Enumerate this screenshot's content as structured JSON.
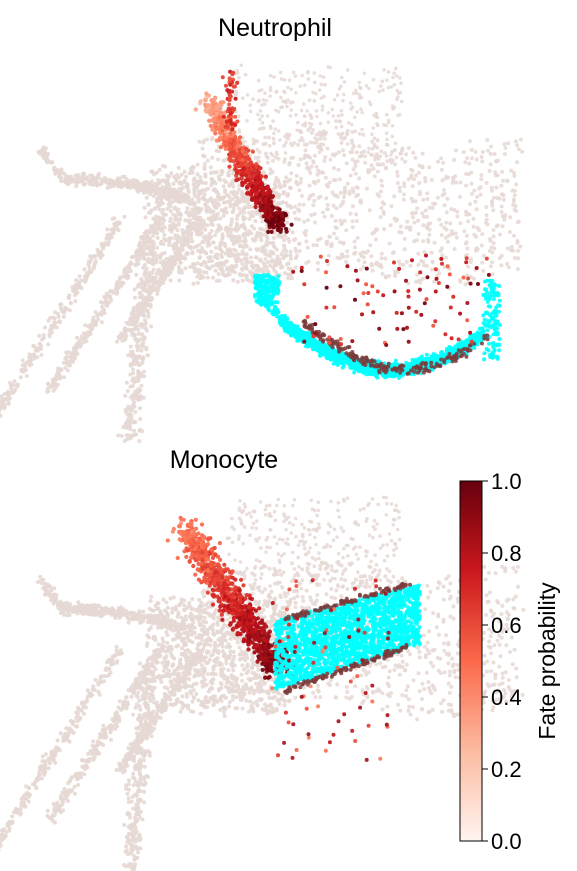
{
  "chart_data": [
    {
      "type": "scatter",
      "title": "Neutrophil",
      "xlabel": "",
      "ylabel": "",
      "axes_visible": false,
      "value_scale": "fate probability 0-1",
      "terminal_state_color": "#00ffff",
      "background_point_color": "#e6d8d4",
      "point_clusters": [
        {
          "region": "left arm and lower branches",
          "fate_probability": 0.05
        },
        {
          "region": "central funnel",
          "fate_probability": 0.75
        },
        {
          "region": "upper right plateau",
          "fate_probability": 0.12
        },
        {
          "region": "lower right basin (terminal)",
          "fate_probability": 1.0
        }
      ]
    },
    {
      "type": "scatter",
      "title": "Monocyte",
      "xlabel": "",
      "ylabel": "",
      "axes_visible": false,
      "value_scale": "fate probability 0-1",
      "terminal_state_color": "#00ffff",
      "background_point_color": "#e6d8d4",
      "point_clusters": [
        {
          "region": "left arm and lower branches",
          "fate_probability": 0.04
        },
        {
          "region": "central funnel",
          "fate_probability": 0.85
        },
        {
          "region": "upper right band (terminal)",
          "fate_probability": 1.0
        },
        {
          "region": "lower right basin",
          "fate_probability": 0.06
        }
      ]
    }
  ],
  "colorbar": {
    "label": "Fate probability",
    "ticks": [
      "0.0",
      "0.2",
      "0.4",
      "0.6",
      "0.8",
      "1.0"
    ],
    "range": [
      0.0,
      1.0
    ],
    "colormap": "Reds",
    "stops": [
      "#fff5f0",
      "#fcbba1",
      "#fb6a4a",
      "#cb181d",
      "#67000d"
    ]
  }
}
